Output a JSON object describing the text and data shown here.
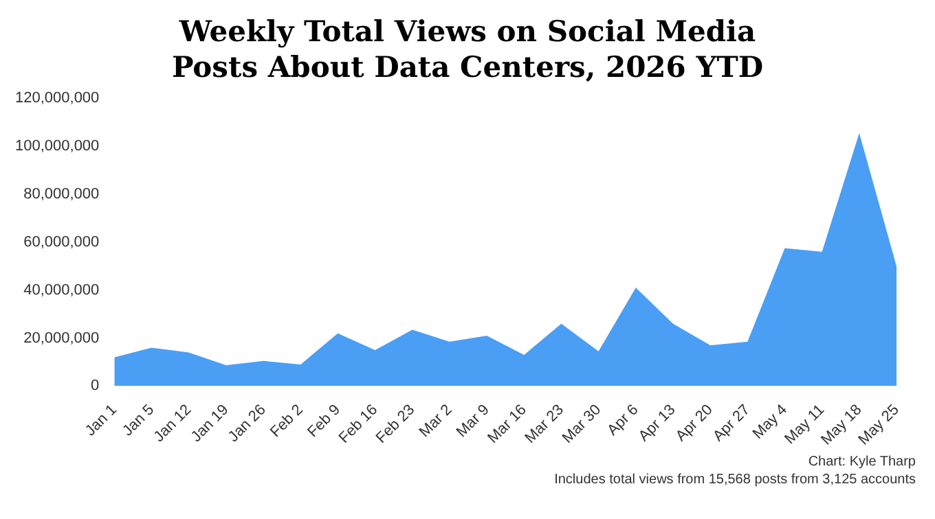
{
  "chart_data": {
    "type": "area",
    "title": "Weekly Total Views on Social Media Posts About Data Centers, 2026 YTD",
    "categories": [
      "Jan 1",
      "Jan 5",
      "Jan 12",
      "Jan 19",
      "Jan 26",
      "Feb 2",
      "Feb 9",
      "Feb 16",
      "Feb 23",
      "Mar 2",
      "Mar 9",
      "Mar 16",
      "Mar 23",
      "Mar 30",
      "Apr 6",
      "Apr 13",
      "Apr 20",
      "Apr 27",
      "May 4",
      "May 11",
      "May 18",
      "May 25"
    ],
    "series": [
      {
        "color": "#4a9ff5",
        "values": [
          12000000,
          16000000,
          14000000,
          8700000,
          10500000,
          9000000,
          22000000,
          15000000,
          23500000,
          18500000,
          21000000,
          13000000,
          26000000,
          14500000,
          41000000,
          26000000,
          17000000,
          18500000,
          57500000,
          56000000,
          105500000,
          50000000
        ]
      }
    ],
    "ylim": [
      0,
      120000000
    ],
    "yticks": [
      {
        "value": 0,
        "label": "0"
      },
      {
        "value": 20000000,
        "label": "20,000,000"
      },
      {
        "value": 40000000,
        "label": "40,000,000"
      },
      {
        "value": 60000000,
        "label": "60,000,000"
      },
      {
        "value": 80000000,
        "label": "80,000,000"
      },
      {
        "value": 100000000,
        "label": "100,000,000"
      },
      {
        "value": 120000000,
        "label": "120,000,000"
      }
    ],
    "annotations": [
      "Chart: Kyle Tharp",
      "Includes total views from 15,568 posts from 3,125 accounts"
    ]
  }
}
